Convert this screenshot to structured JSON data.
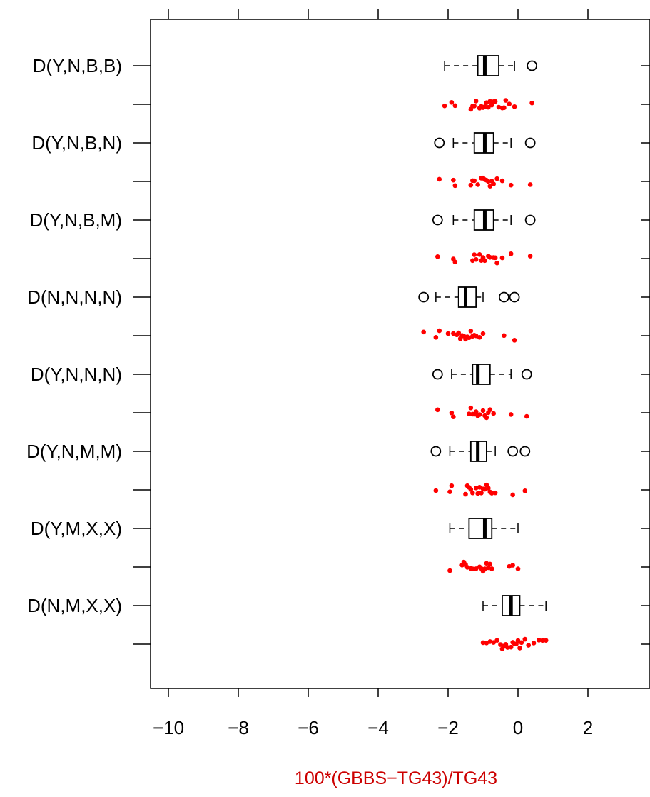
{
  "chart_data": {
    "type": "boxplot",
    "title": "",
    "xlabel": "100*(GBBS−TG43)/TG43",
    "ylabel": "",
    "xlim": [
      -10.5,
      3.5
    ],
    "x_ticks": [
      -10,
      -8,
      -6,
      -4,
      -2,
      0,
      2
    ],
    "x_tick_labels": [
      "−10",
      "−8",
      "−6",
      "−4",
      "−2",
      "0",
      "2"
    ],
    "grid": false,
    "colors": {
      "box": "#000000",
      "points": "#ff0000",
      "xlabel": "#cc0000"
    },
    "categories": [
      "D(Y,N,B,B)",
      "D(Y,N,B,N)",
      "D(Y,N,B,M)",
      "D(N,N,N,N)",
      "D(Y,N,N,N)",
      "D(Y,N,M,M)",
      "D(Y,M,X,X)",
      "D(N,M,X,X)"
    ],
    "series": [
      {
        "category": "D(Y,N,B,B)",
        "whisker_low": -2.1,
        "q1": -1.15,
        "median": -0.95,
        "q3": -0.55,
        "whisker_high": -0.1,
        "outliers": [
          0.4
        ],
        "points": [
          -2.1,
          -1.9,
          -1.8,
          -1.35,
          -1.3,
          -1.25,
          -1.2,
          -1.1,
          -1.05,
          -1.0,
          -0.95,
          -0.9,
          -0.85,
          -0.8,
          -0.75,
          -0.7,
          -0.65,
          -0.55,
          -0.45,
          -0.4,
          -0.35,
          -0.25,
          -0.1,
          0.4
        ]
      },
      {
        "category": "D(Y,N,B,N)",
        "whisker_low": -1.85,
        "q1": -1.25,
        "median": -0.95,
        "q3": -0.7,
        "whisker_high": -0.2,
        "outliers": [
          -2.25,
          0.35
        ],
        "points": [
          -2.25,
          -1.85,
          -1.8,
          -1.35,
          -1.3,
          -1.25,
          -1.15,
          -1.05,
          -1.0,
          -0.95,
          -0.9,
          -0.85,
          -0.8,
          -0.75,
          -0.7,
          -0.6,
          -0.45,
          -0.2,
          0.35
        ]
      },
      {
        "category": "D(Y,N,B,M)",
        "whisker_low": -1.85,
        "q1": -1.25,
        "median": -0.95,
        "q3": -0.7,
        "whisker_high": -0.2,
        "outliers": [
          -2.3,
          0.35
        ],
        "points": [
          -2.3,
          -1.85,
          -1.8,
          -1.3,
          -1.25,
          -1.2,
          -1.1,
          -1.05,
          -1.0,
          -0.95,
          -0.85,
          -0.8,
          -0.7,
          -0.65,
          -0.6,
          -0.45,
          -0.2,
          0.35
        ]
      },
      {
        "category": "D(N,N,N,N)",
        "whisker_low": -2.35,
        "q1": -1.7,
        "median": -1.5,
        "q3": -1.2,
        "whisker_high": -1.0,
        "outliers": [
          -2.7,
          -0.4,
          -0.1
        ],
        "points": [
          -2.7,
          -2.35,
          -2.25,
          -2.0,
          -1.85,
          -1.75,
          -1.7,
          -1.65,
          -1.6,
          -1.55,
          -1.5,
          -1.45,
          -1.4,
          -1.35,
          -1.3,
          -1.25,
          -1.2,
          -1.1,
          -1.0,
          -0.4,
          -0.1
        ]
      },
      {
        "category": "D(Y,N,N,N)",
        "whisker_low": -1.9,
        "q1": -1.3,
        "median": -1.15,
        "q3": -0.8,
        "whisker_high": -0.2,
        "outliers": [
          -2.3,
          0.25
        ],
        "points": [
          -2.3,
          -1.9,
          -1.85,
          -1.4,
          -1.35,
          -1.3,
          -1.25,
          -1.2,
          -1.15,
          -1.1,
          -1.0,
          -0.95,
          -0.9,
          -0.85,
          -0.8,
          -0.7,
          -0.2,
          0.25
        ]
      },
      {
        "category": "D(Y,N,M,M)",
        "whisker_low": -1.95,
        "q1": -1.35,
        "median": -1.15,
        "q3": -0.9,
        "whisker_high": -0.65,
        "outliers": [
          -2.35,
          -0.15,
          0.2
        ],
        "points": [
          -2.35,
          -1.95,
          -1.9,
          -1.5,
          -1.45,
          -1.4,
          -1.35,
          -1.3,
          -1.2,
          -1.15,
          -1.1,
          -1.05,
          -1.0,
          -0.95,
          -0.9,
          -0.85,
          -0.8,
          -0.75,
          -0.65,
          -0.15,
          0.2
        ]
      },
      {
        "category": "D(Y,M,X,X)",
        "whisker_low": -1.95,
        "q1": -1.4,
        "median": -0.95,
        "q3": -0.75,
        "whisker_high": 0.0,
        "outliers": [],
        "points": [
          -1.95,
          -1.6,
          -1.55,
          -1.5,
          -1.45,
          -1.35,
          -1.3,
          -1.2,
          -1.1,
          -1.05,
          -1.0,
          -0.95,
          -0.9,
          -0.85,
          -0.8,
          -0.75,
          -0.25,
          -0.15,
          0.0
        ]
      },
      {
        "category": "D(N,M,X,X)",
        "whisker_low": -1.0,
        "q1": -0.45,
        "median": -0.2,
        "q3": 0.05,
        "whisker_high": 0.8,
        "outliers": [],
        "points": [
          -1.0,
          -0.9,
          -0.8,
          -0.7,
          -0.6,
          -0.5,
          -0.45,
          -0.4,
          -0.35,
          -0.3,
          -0.2,
          -0.15,
          -0.1,
          -0.05,
          0.0,
          0.05,
          0.1,
          0.2,
          0.3,
          0.45,
          0.6,
          0.7,
          0.8
        ]
      }
    ]
  }
}
